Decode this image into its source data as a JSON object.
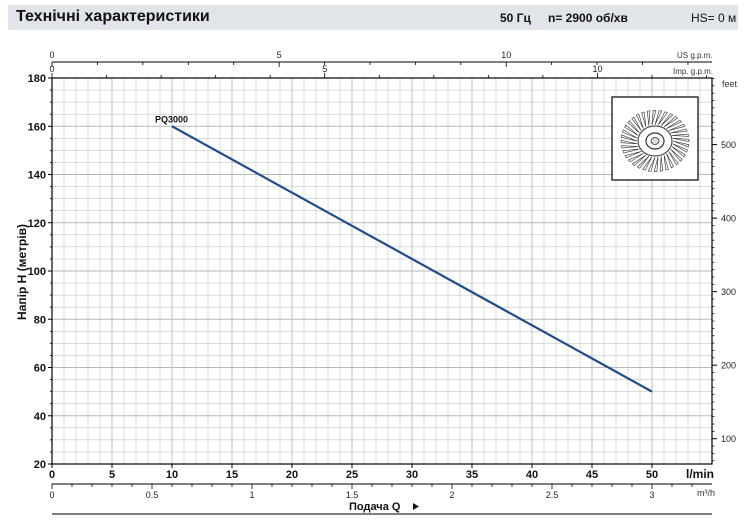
{
  "header": {
    "title": "Технічні характеристики",
    "frequency": "50 Гц",
    "speed": "n= 2900  об/хв",
    "hs": "HS= 0 м"
  },
  "colors": {
    "curve": "#1f4e8c",
    "grid": "#b9b9b9",
    "axis": "#000000",
    "header_bg": "#e1e5e9"
  },
  "impeller_icon": "impeller-icon",
  "chart_data": {
    "type": "line",
    "grid": true,
    "x_axis": {
      "label": "l/min",
      "range": [
        0,
        55
      ],
      "ticks": [
        "0",
        "5",
        "10",
        "15",
        "20",
        "25",
        "30",
        "35",
        "40",
        "45",
        "50"
      ]
    },
    "x_axis_m3h": {
      "label": "m³/h",
      "range": [
        0,
        3.3
      ],
      "ticks": [
        "0",
        "0.5",
        "1",
        "1.5",
        "2",
        "2.5",
        "3"
      ]
    },
    "x_axis_us_gpm": {
      "label": "US g.p.m.",
      "range": [
        0,
        14.53
      ],
      "ticks": [
        "0",
        "5",
        "10"
      ]
    },
    "x_axis_imp_gpm": {
      "label": "Imp. g.p.m.",
      "range": [
        0,
        12.1
      ],
      "ticks": [
        "0",
        "5",
        "10"
      ]
    },
    "y_axis": {
      "label": "Напір H (метрів)",
      "range": [
        20,
        180
      ],
      "ticks": [
        "20",
        "40",
        "60",
        "80",
        "100",
        "120",
        "140",
        "160",
        "180"
      ]
    },
    "y_axis_right": {
      "label": "feet",
      "range": [
        65.6,
        590.6
      ],
      "ticks": [
        "100",
        "200",
        "300",
        "400",
        "500"
      ]
    },
    "bottom_label": "Подача Q",
    "series": [
      {
        "name": "PQ3000",
        "x": [
          10,
          50
        ],
        "y": [
          160,
          50
        ]
      }
    ]
  }
}
